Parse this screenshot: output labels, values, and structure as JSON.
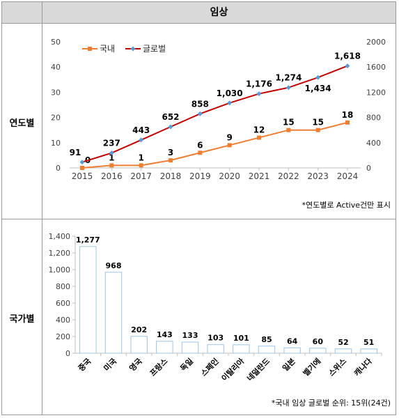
{
  "header": {
    "title": "임상"
  },
  "rows": {
    "yearly_label": "연도별",
    "country_label": "국가별"
  },
  "notes": {
    "yearly": "*연도별로 Active건만 표시",
    "country": "*국내 임상 글로벌 순위: 15위(24건)"
  },
  "chart_data": [
    {
      "type": "line",
      "x": [
        "2015",
        "2016",
        "2017",
        "2018",
        "2019",
        "2020",
        "2021",
        "2022",
        "2023",
        "2024"
      ],
      "series": [
        {
          "name": "국내",
          "axis": "left",
          "color": "#ed7d31",
          "values": [
            0,
            1,
            1,
            3,
            6,
            9,
            12,
            15,
            15,
            18
          ]
        },
        {
          "name": "글로벌",
          "axis": "right",
          "color": "#c00000",
          "marker_color": "#5b9bd5",
          "values": [
            91,
            237,
            443,
            652,
            858,
            1030,
            1176,
            1274,
            1434,
            1618
          ]
        }
      ],
      "y_left": {
        "ticks": [
          "0",
          "10",
          "20",
          "30",
          "40",
          "50"
        ],
        "ylim": [
          0,
          50
        ]
      },
      "y_right": {
        "ticks": [
          "0",
          "400",
          "800",
          "1200",
          "1600",
          "2000"
        ],
        "ylim": [
          0,
          2000
        ]
      },
      "legend": "top-left",
      "grid": false
    },
    {
      "type": "bar",
      "categories": [
        "중국",
        "미국",
        "영국",
        "프랑스",
        "독일",
        "스페인",
        "이탈리아",
        "네덜란드",
        "일본",
        "벨기에",
        "스위스",
        "캐나다"
      ],
      "values": [
        1277,
        968,
        202,
        143,
        133,
        103,
        101,
        85,
        64,
        60,
        52,
        51
      ],
      "value_labels": [
        "1,277",
        "968",
        "202",
        "143",
        "133",
        "103",
        "101",
        "85",
        "64",
        "60",
        "52",
        "51"
      ],
      "y_ticks": [
        "0",
        "200",
        "400",
        "600",
        "800",
        "1,000",
        "1,200",
        "1,400"
      ],
      "ylim": [
        0,
        1400
      ],
      "bar_color": "#9dc3e6",
      "grid": false
    }
  ]
}
